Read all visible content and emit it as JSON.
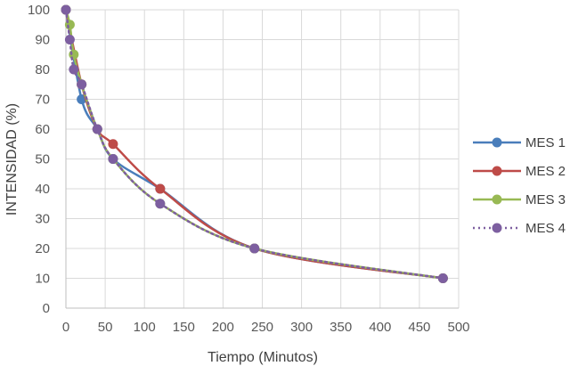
{
  "chart_data": {
    "type": "line",
    "xlabel": "Tiempo (Minutos)",
    "ylabel": "INTENSIDAD (%)",
    "xlim": [
      0,
      500
    ],
    "ylim": [
      0,
      100
    ],
    "x_ticks": [
      "0",
      "50",
      "100",
      "150",
      "200",
      "250",
      "300",
      "350",
      "400",
      "450",
      "500"
    ],
    "y_ticks": [
      "0",
      "10",
      "20",
      "30",
      "40",
      "50",
      "60",
      "70",
      "80",
      "90",
      "100"
    ],
    "grid": true,
    "legend_position": "right",
    "series": [
      {
        "name": "MES 1",
        "color": "#4a7ebb",
        "dash": "solid",
        "points": [
          [
            0,
            100
          ],
          [
            20,
            70
          ],
          [
            40,
            60
          ],
          [
            60,
            50
          ],
          [
            120,
            40
          ],
          [
            240,
            20
          ],
          [
            480,
            10
          ]
        ]
      },
      {
        "name": "MES 2",
        "color": "#be4b48",
        "dash": "solid",
        "points": [
          [
            0,
            100
          ],
          [
            20,
            75
          ],
          [
            40,
            60
          ],
          [
            60,
            55
          ],
          [
            120,
            40
          ],
          [
            240,
            20
          ],
          [
            480,
            10
          ]
        ]
      },
      {
        "name": "MES 3",
        "color": "#98b954",
        "dash": "solid",
        "points": [
          [
            0,
            100
          ],
          [
            5,
            95
          ],
          [
            10,
            85
          ],
          [
            20,
            75
          ],
          [
            40,
            60
          ],
          [
            60,
            50
          ],
          [
            120,
            35
          ],
          [
            240,
            20
          ],
          [
            480,
            10
          ]
        ]
      },
      {
        "name": "MES 4",
        "color": "#7d5fa0",
        "dash": "dotted",
        "points": [
          [
            0,
            100
          ],
          [
            5,
            90
          ],
          [
            10,
            80
          ],
          [
            20,
            75
          ],
          [
            40,
            60
          ],
          [
            60,
            50
          ],
          [
            120,
            35
          ],
          [
            240,
            20
          ],
          [
            480,
            10
          ]
        ]
      }
    ]
  }
}
